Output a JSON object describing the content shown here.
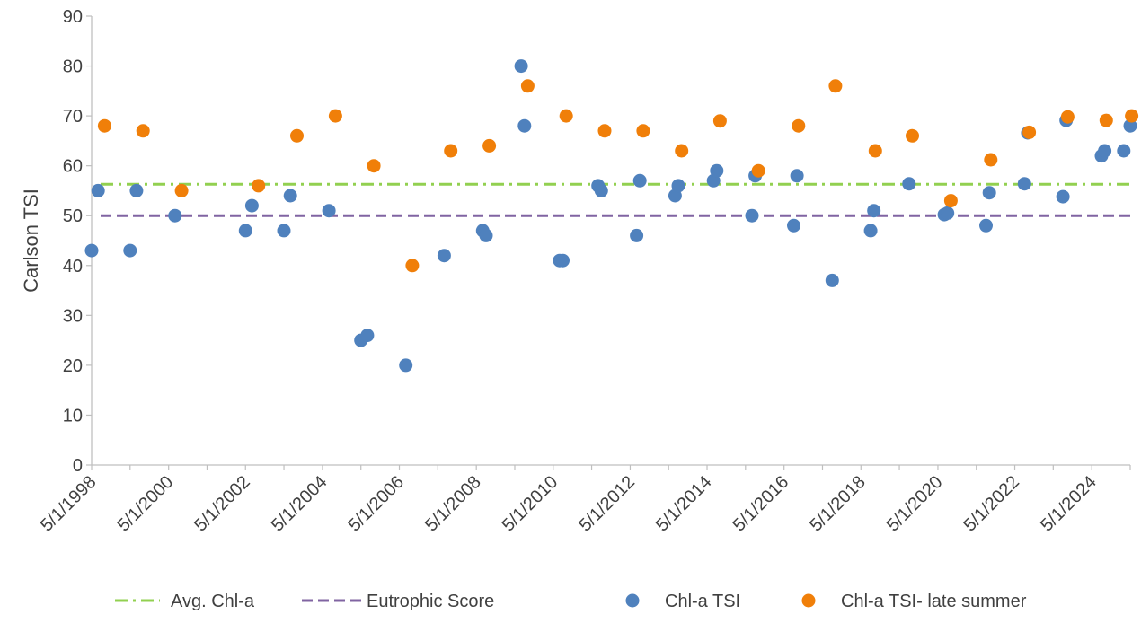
{
  "chart_data": {
    "type": "scatter",
    "title": "",
    "ylabel": "Carlson TSI",
    "xlabel": "",
    "ylim": [
      0,
      90
    ],
    "y_ticks": [
      "0",
      "10",
      "20",
      "30",
      "40",
      "50",
      "60",
      "70",
      "80",
      "90"
    ],
    "xlim": [
      "1998-05-01",
      "2025-05-01"
    ],
    "x_ticks": [
      "5/1/1998",
      "5/1/2000",
      "5/1/2002",
      "5/1/2004",
      "5/1/2006",
      "5/1/2008",
      "5/1/2010",
      "5/1/2012",
      "5/1/2014",
      "5/1/2016",
      "5/1/2018",
      "5/1/2020",
      "5/1/2022",
      "5/1/2024"
    ],
    "grid": false,
    "legend_position": "bottom",
    "reference_lines": [
      {
        "name": "Avg. Chl-a",
        "y": 56.3,
        "color": "#92D050",
        "style": "dash-dot"
      },
      {
        "name": "Eutrophic Score",
        "y": 50,
        "color": "#8064A2",
        "style": "dashed"
      }
    ],
    "series": [
      {
        "name": "Chl-a TSI",
        "color": "#4F81BD",
        "points": [
          [
            "1998-05-01",
            43
          ],
          [
            "1998-07-01",
            55
          ],
          [
            "1999-05-01",
            43
          ],
          [
            "1999-07-01",
            55
          ],
          [
            "2000-07-01",
            50
          ],
          [
            "2002-05-01",
            47
          ],
          [
            "2002-07-01",
            52
          ],
          [
            "2003-05-01",
            47
          ],
          [
            "2003-07-01",
            54
          ],
          [
            "2004-07-01",
            51
          ],
          [
            "2005-05-01",
            25
          ],
          [
            "2005-07-01",
            26
          ],
          [
            "2006-07-01",
            20
          ],
          [
            "2007-07-01",
            42
          ],
          [
            "2008-07-01",
            47
          ],
          [
            "2008-08-01",
            46
          ],
          [
            "2009-07-01",
            80
          ],
          [
            "2009-08-01",
            68
          ],
          [
            "2010-07-01",
            41
          ],
          [
            "2010-08-01",
            41
          ],
          [
            "2011-07-01",
            56
          ],
          [
            "2011-08-01",
            55
          ],
          [
            "2012-07-01",
            46
          ],
          [
            "2012-08-01",
            57
          ],
          [
            "2013-07-01",
            54
          ],
          [
            "2013-08-01",
            56
          ],
          [
            "2014-07-01",
            57
          ],
          [
            "2014-08-01",
            59
          ],
          [
            "2015-07-01",
            50
          ],
          [
            "2015-08-01",
            58
          ],
          [
            "2016-08-01",
            48
          ],
          [
            "2016-09-01",
            58
          ],
          [
            "2017-08-01",
            37
          ],
          [
            "2018-08-01",
            47
          ],
          [
            "2018-09-01",
            51
          ],
          [
            "2019-08-01",
            56.4
          ],
          [
            "2020-07-01",
            50.2
          ],
          [
            "2020-08-01",
            50.5
          ],
          [
            "2021-08-01",
            48
          ],
          [
            "2021-09-01",
            54.6
          ],
          [
            "2022-08-01",
            56.4
          ],
          [
            "2022-09-01",
            66.6
          ],
          [
            "2023-08-01",
            53.8
          ],
          [
            "2023-09-01",
            69.1
          ],
          [
            "2024-08-01",
            62
          ],
          [
            "2024-09-01",
            63
          ],
          [
            "2025-03-01",
            63
          ],
          [
            "2025-05-01",
            68
          ]
        ]
      },
      {
        "name": "Chl-a TSI- late summer",
        "color": "#F07F09",
        "points": [
          [
            "1998-09-01",
            68
          ],
          [
            "1999-09-01",
            67
          ],
          [
            "2000-09-01",
            55
          ],
          [
            "2002-09-01",
            56
          ],
          [
            "2003-09-01",
            66
          ],
          [
            "2004-09-01",
            70
          ],
          [
            "2005-09-01",
            60
          ],
          [
            "2006-09-01",
            40
          ],
          [
            "2007-09-01",
            63
          ],
          [
            "2008-09-01",
            64
          ],
          [
            "2009-09-01",
            76
          ],
          [
            "2010-09-01",
            70
          ],
          [
            "2011-09-01",
            67
          ],
          [
            "2012-09-01",
            67
          ],
          [
            "2013-09-01",
            63
          ],
          [
            "2014-09-01",
            69
          ],
          [
            "2015-09-01",
            59
          ],
          [
            "2016-09-15",
            68
          ],
          [
            "2017-09-01",
            76
          ],
          [
            "2018-09-15",
            63
          ],
          [
            "2019-09-01",
            66
          ],
          [
            "2020-09-01",
            53
          ],
          [
            "2021-09-15",
            61.2
          ],
          [
            "2022-09-15",
            66.7
          ],
          [
            "2023-09-15",
            69.8
          ],
          [
            "2024-09-15",
            69.1
          ],
          [
            "2025-05-15",
            70
          ]
        ]
      }
    ]
  }
}
